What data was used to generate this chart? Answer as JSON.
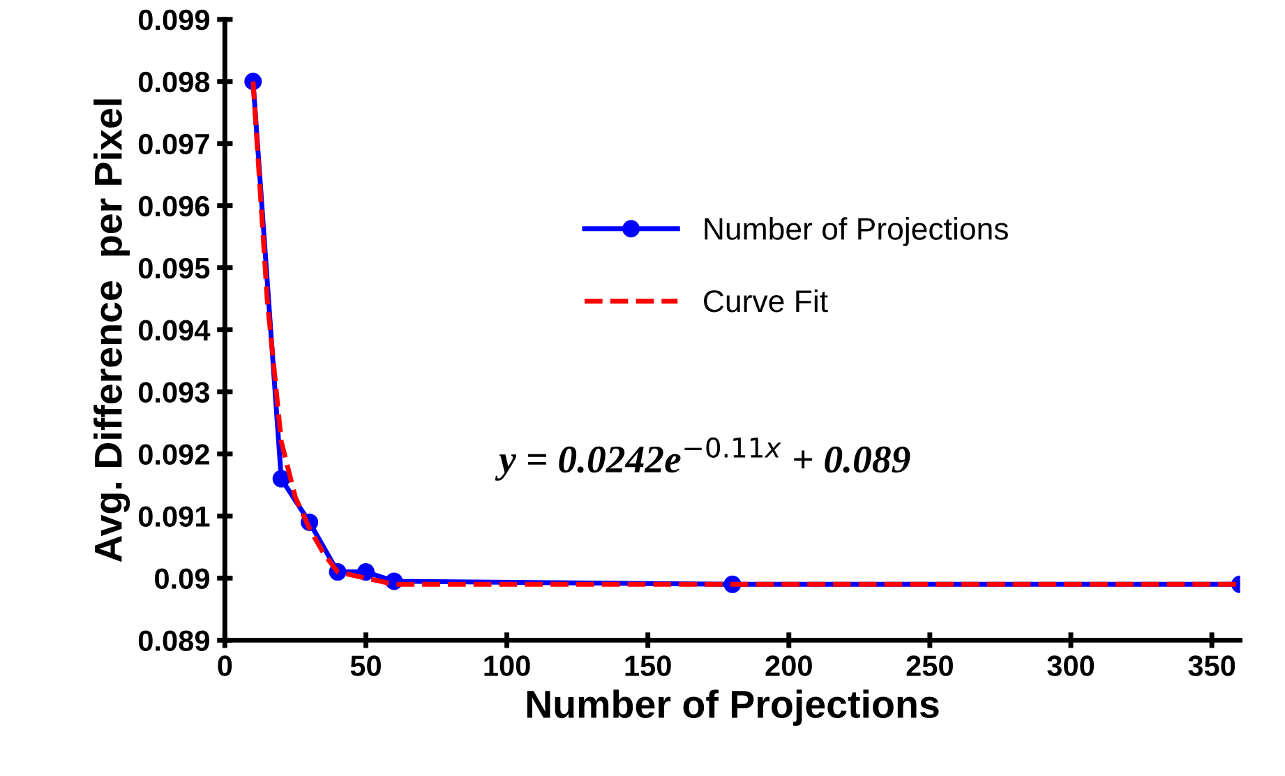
{
  "chart_data": {
    "type": "line",
    "xlabel": "Number of Projections",
    "ylabel": "Avg. Difference  per Pixel",
    "series": [
      {
        "name": "Number of Projections",
        "color": "#0000ff",
        "marker": "circle",
        "line_style": "solid",
        "x": [
          10,
          20,
          30,
          40,
          50,
          60,
          180,
          360
        ],
        "values": [
          0.098,
          0.0916,
          0.0909,
          0.0901,
          0.0901,
          0.08995,
          0.0899,
          0.0899
        ]
      },
      {
        "name": "Curve Fit",
        "color": "#ff0000",
        "marker": "none",
        "line_style": "dashed",
        "x": [
          10,
          15,
          20,
          25,
          30,
          35,
          40,
          50,
          60,
          100,
          360
        ],
        "values": [
          0.098,
          0.0945,
          0.0922,
          0.0913,
          0.0908,
          0.0904,
          0.0901,
          0.09,
          0.0899,
          0.0899,
          0.0899
        ]
      }
    ],
    "annotations": [
      "y = 0.0242e$^{−0.11x}$ + 0.089"
    ],
    "xlim": [
      0,
      360
    ],
    "xticks": [
      0,
      50,
      100,
      150,
      200,
      250,
      300,
      350
    ],
    "ylim": [
      0.089,
      0.099
    ],
    "yticks": [
      {
        "value": 0.089,
        "label": "0.089"
      },
      {
        "value": 0.09,
        "label": "0.09"
      },
      {
        "value": 0.091,
        "label": "0.091"
      },
      {
        "value": 0.092,
        "label": "0.092"
      },
      {
        "value": 0.093,
        "label": "0.093"
      },
      {
        "value": 0.094,
        "label": "0.094"
      },
      {
        "value": 0.095,
        "label": "0.095"
      },
      {
        "value": 0.096,
        "label": "0.096"
      },
      {
        "value": 0.097,
        "label": "0.097"
      },
      {
        "value": 0.098,
        "label": "0.098"
      },
      {
        "value": 0.099,
        "label": "0.099"
      }
    ],
    "grid": false,
    "legend": "center right"
  }
}
